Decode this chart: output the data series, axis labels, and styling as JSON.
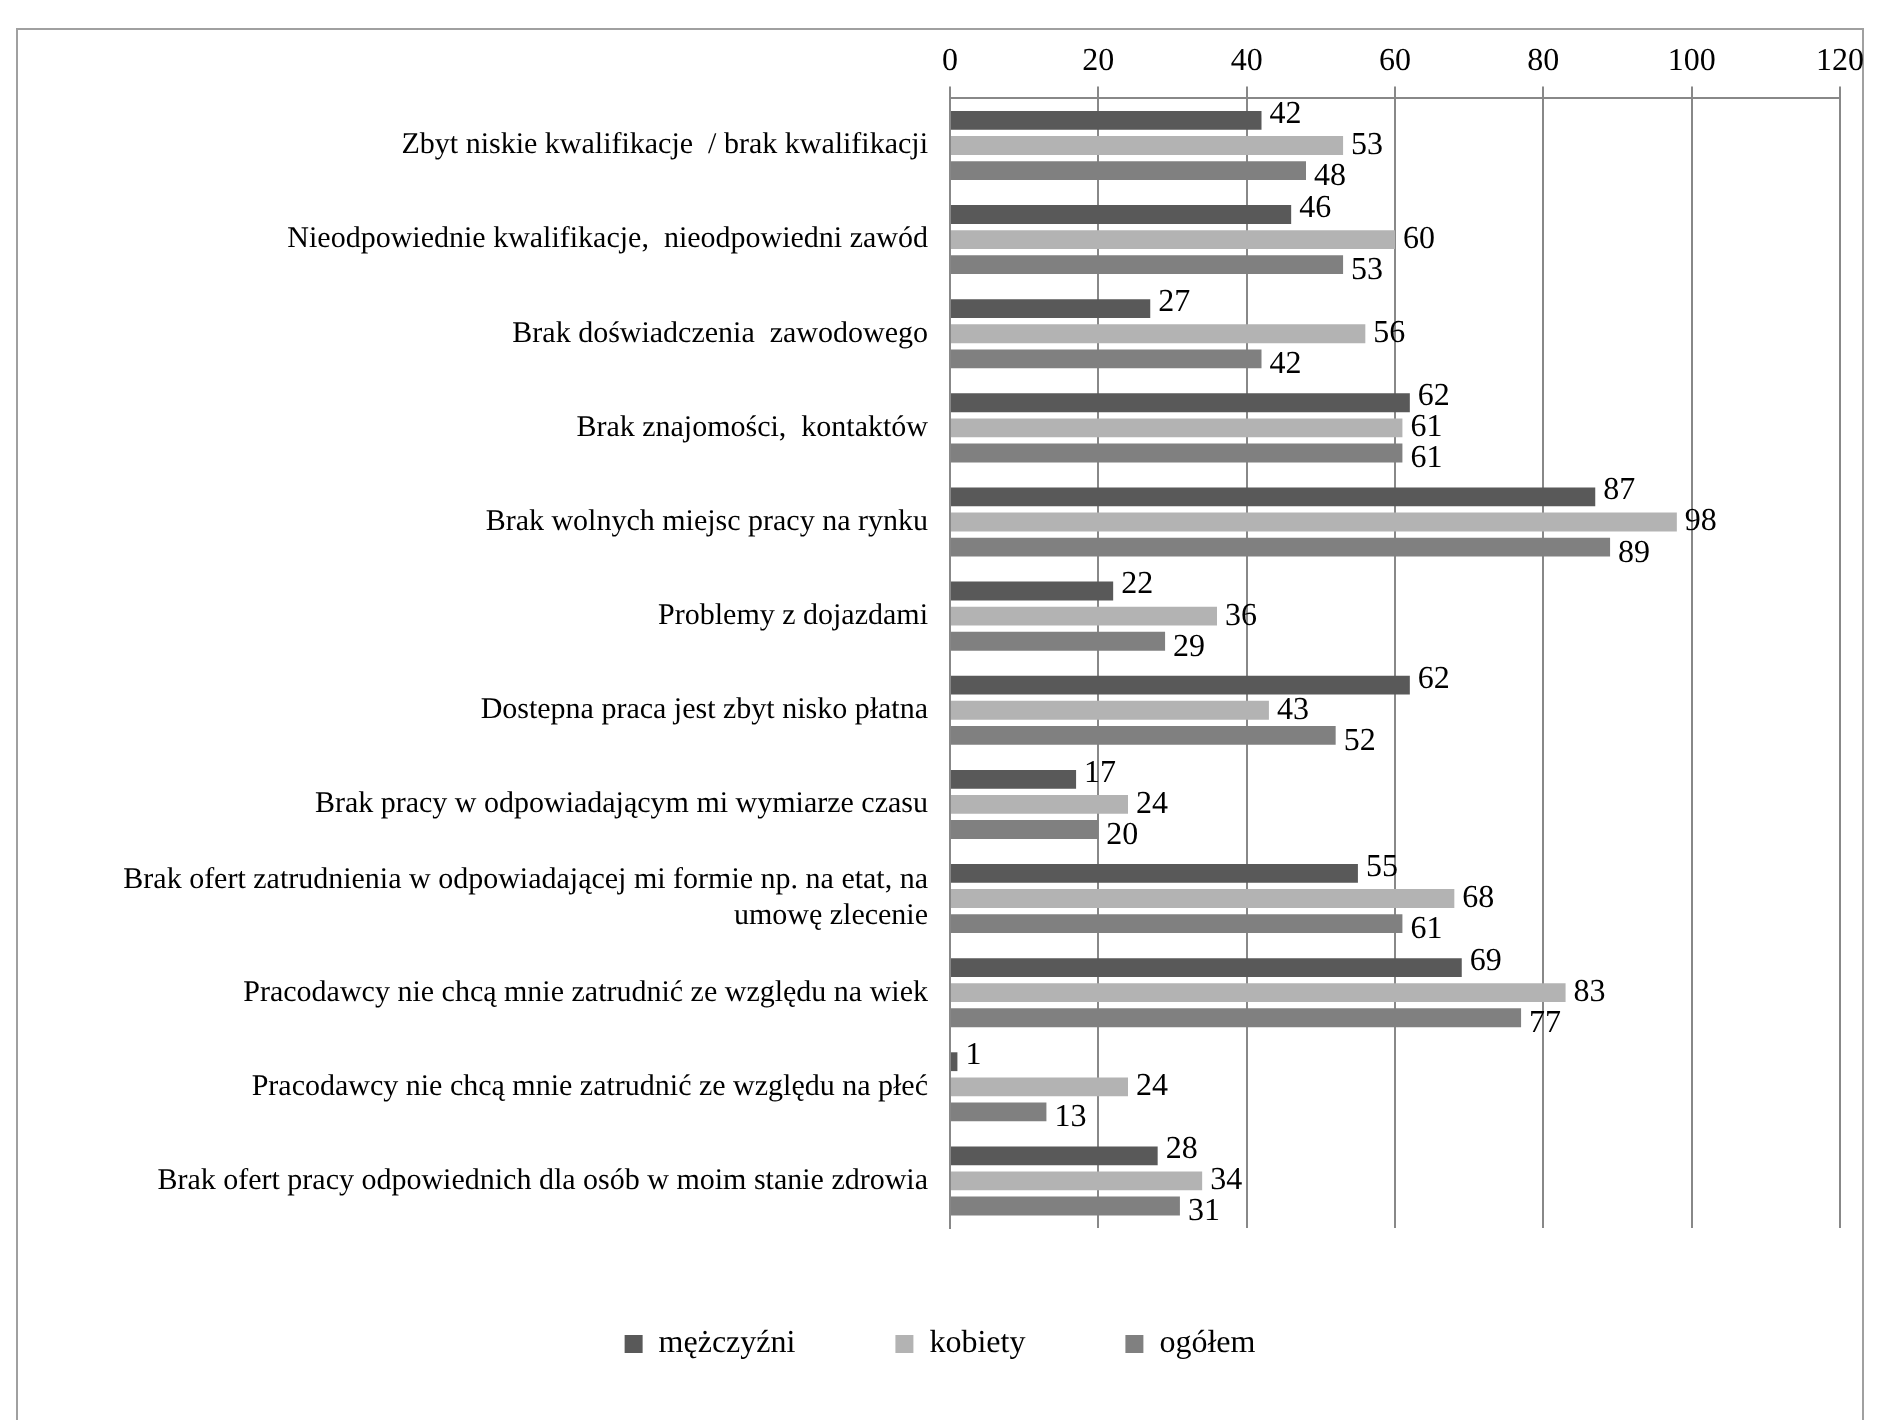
{
  "chart_data": {
    "type": "bar",
    "orientation": "horizontal",
    "categories": [
      "Zbyt niskie kwalifikacje  / brak kwalifikacji",
      "Nieodpowiednie kwalifikacje,  nieodpowiedni zawód",
      "Brak doświadczenia  zawodowego",
      "Brak znajomości,  kontaktów",
      "Brak wolnych miejsc pracy na rynku",
      "Problemy z dojazdami",
      "Dostepna praca jest zbyt nisko płatna",
      "Brak pracy w odpowiadającym mi wymiarze czasu",
      "Brak ofert zatrudnienia w odpowiadającej mi formie np. na etat, na umowę zlecenie",
      "Pracodawcy nie chcą mnie zatrudnić ze względu na wiek",
      "Pracodawcy nie chcą mnie zatrudnić ze względu na płeć",
      "Brak ofert pracy odpowiednich dla osób w moim stanie zdrowia"
    ],
    "series": [
      {
        "name": "mężczyźni",
        "color": "#595959",
        "values": [
          42,
          46,
          27,
          62,
          87,
          22,
          62,
          17,
          55,
          69,
          1,
          28
        ]
      },
      {
        "name": "kobiety",
        "color": "#b3b3b3",
        "values": [
          53,
          60,
          56,
          61,
          98,
          36,
          43,
          24,
          68,
          83,
          24,
          34
        ]
      },
      {
        "name": "ogółem",
        "color": "#808080",
        "values": [
          48,
          53,
          42,
          61,
          89,
          29,
          52,
          20,
          61,
          77,
          13,
          31
        ]
      }
    ],
    "xlim": [
      0,
      120
    ],
    "xticks": [
      0,
      20,
      40,
      60,
      80,
      100,
      120
    ],
    "grid": "x",
    "legend": "bottom",
    "data_labels": true
  }
}
